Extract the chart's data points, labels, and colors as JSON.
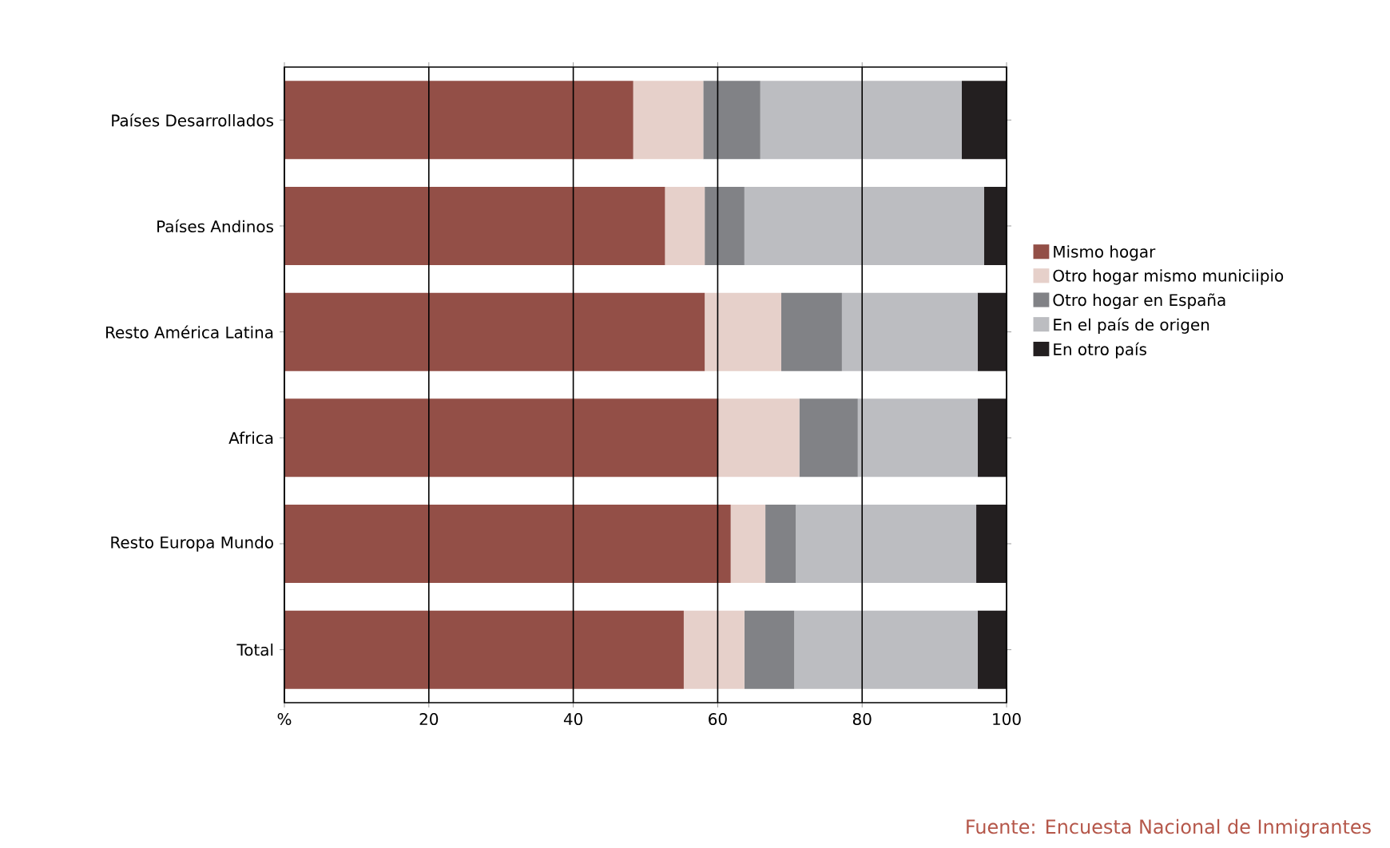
{
  "chart_data": {
    "type": "bar",
    "orientation": "horizontal",
    "stacked": true,
    "categories": [
      "Países Desarrollados",
      "Países Andinos",
      "Resto América Latina",
      "Africa",
      "Resto Europa Mundo",
      "Total"
    ],
    "series": [
      {
        "name": "Mismo hogar",
        "color": "#934f47",
        "values": [
          48.3,
          52.7,
          58.2,
          60.1,
          61.8,
          55.3
        ]
      },
      {
        "name": "Otro hogar mismo municiipio",
        "color": "#e6d0ca",
        "values": [
          9.7,
          5.5,
          10.6,
          11.2,
          4.8,
          8.4
        ]
      },
      {
        "name": "Otro hogar en España",
        "color": "#818286",
        "values": [
          7.9,
          5.5,
          8.4,
          8.1,
          4.2,
          6.9
        ]
      },
      {
        "name": "En el país de origen",
        "color": "#bcbdc1",
        "values": [
          27.9,
          33.2,
          18.8,
          16.6,
          25.0,
          25.4
        ]
      },
      {
        "name": "En otro país",
        "color": "#231f20",
        "values": [
          6.2,
          3.1,
          4.0,
          4.0,
          4.2,
          4.0
        ]
      }
    ],
    "xlim": [
      0,
      100
    ],
    "xticks": [
      {
        "value": 0,
        "label": "%"
      },
      20,
      40,
      60,
      80,
      100
    ],
    "grid": "x",
    "legend": "right",
    "annotations": [
      "Fuente: Encuesta Nacional de Inmigrantes"
    ]
  }
}
